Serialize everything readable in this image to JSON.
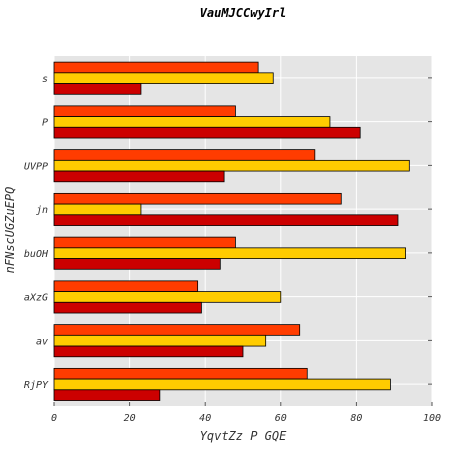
{
  "chart_data": {
    "type": "bar",
    "orientation": "horizontal",
    "title": "VauMJCCwyIrl",
    "xlabel": "YqvtZz P   GQE",
    "ylabel": "nFNscUGZuEPQ",
    "xlim": [
      0,
      100
    ],
    "x_ticks": [
      0,
      20,
      40,
      60,
      80,
      100
    ],
    "grid": true,
    "legend": "none",
    "categories": [
      "s",
      "P",
      "UVPP",
      "jn",
      "buOH",
      "aXzG",
      "av",
      "RjPY"
    ],
    "series": [
      {
        "color": "#ff3c00",
        "values": [
          54,
          48,
          69,
          76,
          48,
          38,
          65,
          67
        ]
      },
      {
        "color": "#ffcc00",
        "values": [
          58,
          73,
          94,
          23,
          93,
          60,
          56,
          89
        ]
      },
      {
        "color": "#cc0000",
        "values": [
          23,
          81,
          45,
          91,
          44,
          39,
          50,
          28
        ]
      }
    ],
    "plot_background": "#e5e5e5",
    "grid_color": "#ffffff"
  }
}
